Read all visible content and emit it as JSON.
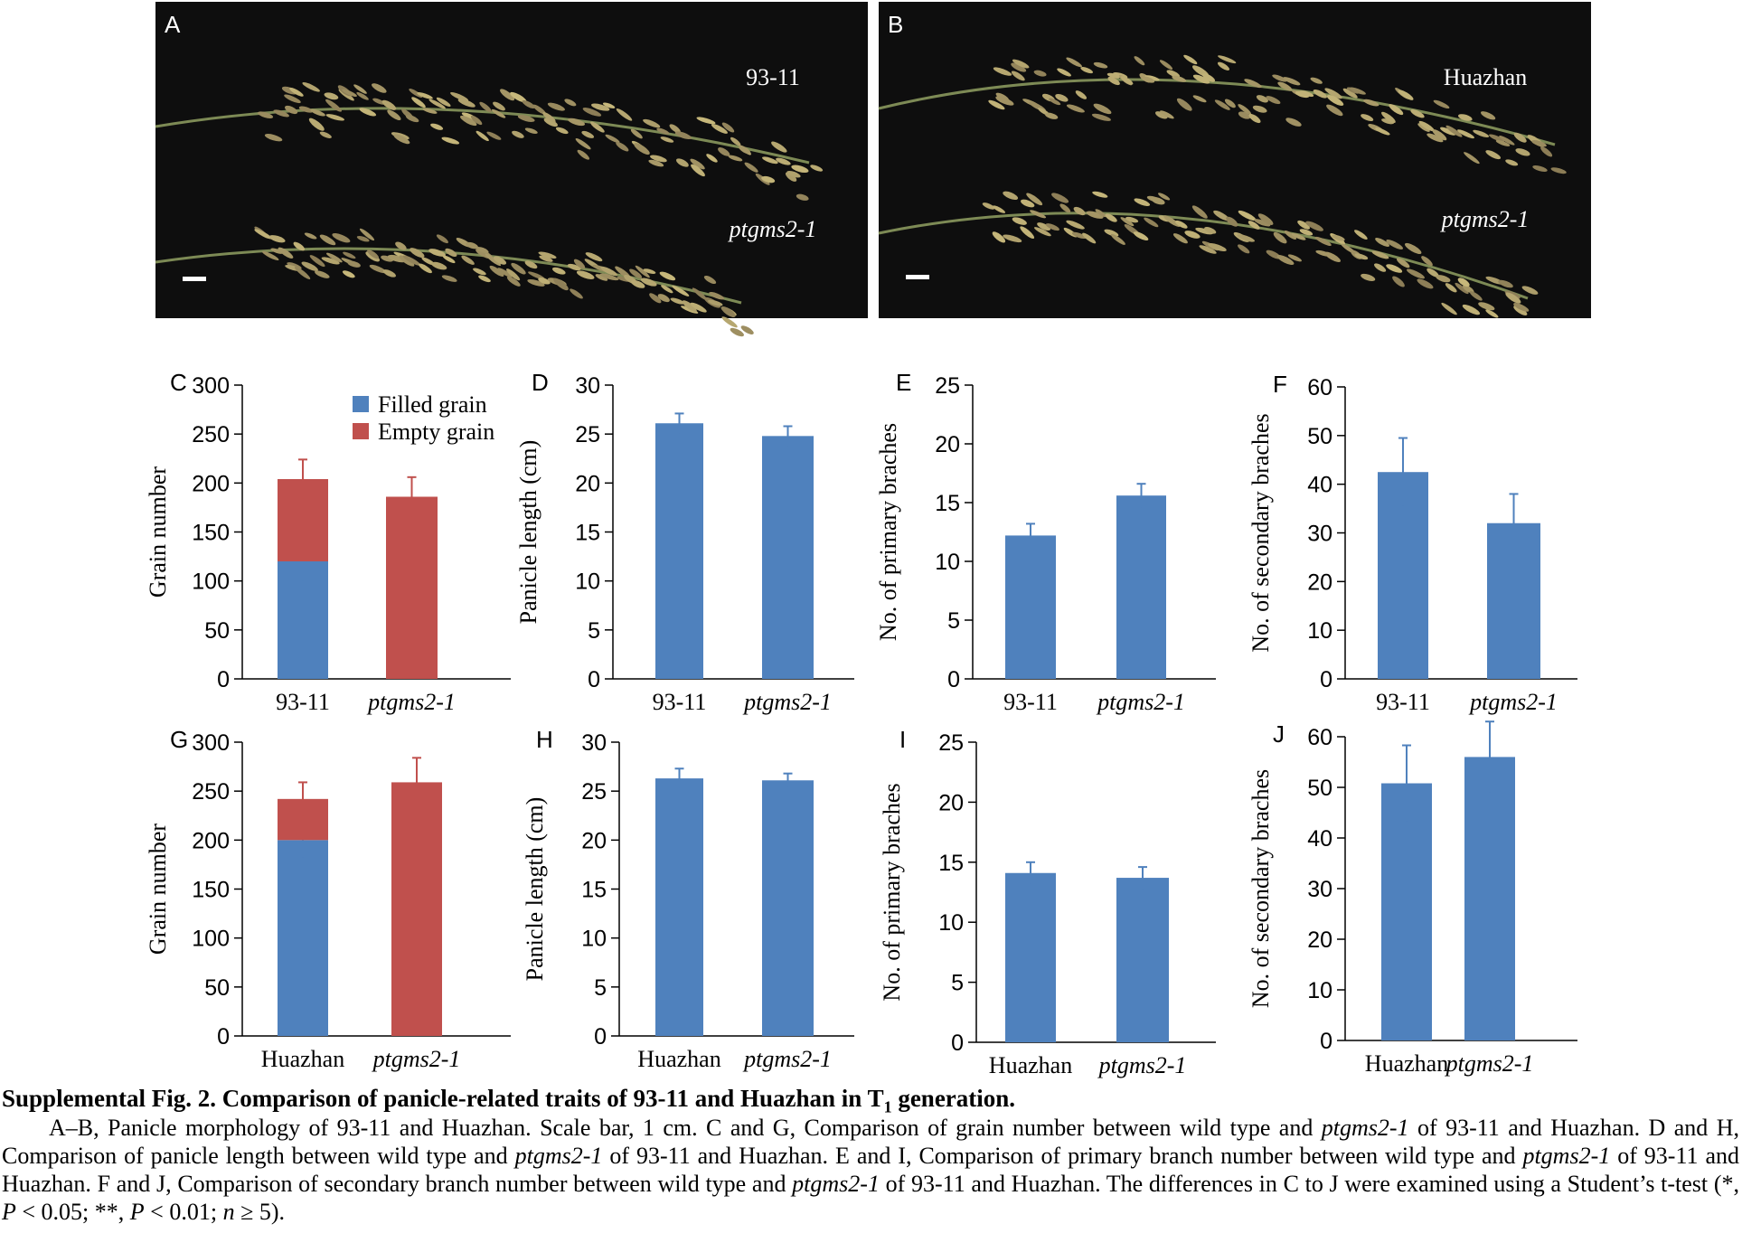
{
  "photo_panels": [
    {
      "letter": "A",
      "labels": [
        "93-11",
        "ptgms2-1"
      ],
      "label_styles": [
        "normal",
        "italic"
      ],
      "background": "#0e0e0e",
      "panicle_color": "#b8a774"
    },
    {
      "letter": "B",
      "labels": [
        "Huazhan",
        "ptgms2-1"
      ],
      "label_styles": [
        "normal",
        "italic"
      ],
      "background": "#0e0e0e",
      "panicle_color": "#b3a56b"
    }
  ],
  "colors": {
    "filled": "#4f81bd",
    "empty": "#c0504d",
    "bar": "#4f81bd",
    "axis": "#000000"
  },
  "chart_data": [
    {
      "letter": "C",
      "type": "bar",
      "stacked": true,
      "categories": [
        "93-11",
        "ptgms2-1"
      ],
      "category_italic": [
        false,
        true
      ],
      "ylabel": "Grain number",
      "ylim": [
        0,
        300
      ],
      "ticks": [
        0,
        50,
        100,
        150,
        200,
        250,
        300
      ],
      "legend": [
        "Filled grain",
        "Empty grain"
      ],
      "legend_position": "top-right",
      "series": [
        {
          "name": "Filled grain",
          "values": [
            120,
            0
          ],
          "errors": [
            20,
            0
          ]
        },
        {
          "name": "Empty grain",
          "values": [
            84,
            186
          ],
          "errors": [
            20,
            20
          ]
        }
      ]
    },
    {
      "letter": "D",
      "type": "bar",
      "categories": [
        "93-11",
        "ptgms2-1"
      ],
      "category_italic": [
        false,
        true
      ],
      "ylabel": "Panicle length (cm)",
      "ylim": [
        0,
        30
      ],
      "ticks": [
        0,
        5,
        10,
        15,
        20,
        25,
        30
      ],
      "values": [
        26.1,
        24.8
      ],
      "errors": [
        1.0,
        1.0
      ]
    },
    {
      "letter": "E",
      "type": "bar",
      "categories": [
        "93-11",
        "ptgms2-1"
      ],
      "category_italic": [
        false,
        true
      ],
      "ylabel": "No. of primary braches",
      "ylim": [
        0,
        25
      ],
      "ticks": [
        0,
        5,
        10,
        15,
        20,
        25
      ],
      "values": [
        12.2,
        15.6
      ],
      "errors": [
        1.0,
        1.0
      ]
    },
    {
      "letter": "F",
      "type": "bar",
      "categories": [
        "93-11",
        "ptgms2-1"
      ],
      "category_italic": [
        false,
        true
      ],
      "ylabel": "No. of secondary braches",
      "ylim": [
        0,
        60
      ],
      "ticks": [
        0,
        10,
        20,
        30,
        40,
        50,
        60
      ],
      "values": [
        42.5,
        32.0
      ],
      "errors": [
        7.0,
        6.0
      ]
    },
    {
      "letter": "G",
      "type": "bar",
      "stacked": true,
      "categories": [
        "Huazhan",
        "ptgms2-1"
      ],
      "category_italic": [
        false,
        true
      ],
      "ylabel": "Grain number",
      "ylim": [
        0,
        300
      ],
      "ticks": [
        0,
        50,
        100,
        150,
        200,
        250,
        300
      ],
      "series": [
        {
          "name": "Filled grain",
          "values": [
            200,
            0
          ],
          "errors": [
            18,
            0
          ]
        },
        {
          "name": "Empty grain",
          "values": [
            42,
            259
          ],
          "errors": [
            17,
            25
          ]
        }
      ]
    },
    {
      "letter": "H",
      "type": "bar",
      "categories": [
        "Huazhan",
        "ptgms2-1"
      ],
      "category_italic": [
        false,
        true
      ],
      "ylabel": "Panicle length (cm)",
      "ylim": [
        0,
        30
      ],
      "ticks": [
        0,
        5,
        10,
        15,
        20,
        25,
        30
      ],
      "values": [
        26.3,
        26.1
      ],
      "errors": [
        1.0,
        0.7
      ]
    },
    {
      "letter": "I",
      "type": "bar",
      "categories": [
        "Huazhan",
        "ptgms2-1"
      ],
      "category_italic": [
        false,
        true
      ],
      "ylabel": "No. of primary braches",
      "ylim": [
        0,
        25
      ],
      "ticks": [
        0,
        5,
        10,
        15,
        20,
        25
      ],
      "values": [
        14.1,
        13.7
      ],
      "errors": [
        0.9,
        0.9
      ]
    },
    {
      "letter": "J",
      "type": "bar",
      "categories": [
        "Huazhan",
        "ptgms2-1"
      ],
      "category_italic": [
        false,
        true
      ],
      "ylabel": "No. of secondary braches",
      "ylim": [
        0,
        60
      ],
      "ticks": [
        0,
        10,
        20,
        30,
        40,
        50,
        60
      ],
      "values": [
        50.8,
        56.0
      ],
      "errors": [
        7.5,
        7.0
      ]
    }
  ],
  "caption": {
    "title": "Supplemental Fig. 2. Comparison of panicle-related traits of 93-11 and Huazhan in T",
    "title_sub": "1",
    "title_end": " generation.",
    "body": [
      {
        "t": "A–B, Panicle morphology of 93-11 and Huazhan. Scale bar, 1 cm. C and G, Comparison of grain number between wild type and ",
        "i": false
      },
      {
        "t": "ptgms2-1",
        "i": true
      },
      {
        "t": " of 93-11 and Huazhan. D and H, Comparison of panicle length between wild type and ",
        "i": false
      },
      {
        "t": "ptgms2-1",
        "i": true
      },
      {
        "t": " of 93-11 and Huazhan. E and I, Comparison of primary branch number between wild type and ",
        "i": false
      },
      {
        "t": "ptgms2-1",
        "i": true
      },
      {
        "t": " of 93-11 and Huazhan. F and J, Comparison of secondary branch number between wild type and ",
        "i": false
      },
      {
        "t": "ptgms2-1",
        "i": true
      },
      {
        "t": " of 93-11 and Huazhan. The differences in C to J were examined using a Student’s t-test (*, ",
        "i": false
      },
      {
        "t": "P",
        "i": true
      },
      {
        "t": " < 0.05; **, ",
        "i": false
      },
      {
        "t": "P",
        "i": true
      },
      {
        "t": " < 0.01; ",
        "i": false
      },
      {
        "t": "n",
        "i": true
      },
      {
        "t": " ≥ 5).",
        "i": false
      }
    ]
  }
}
